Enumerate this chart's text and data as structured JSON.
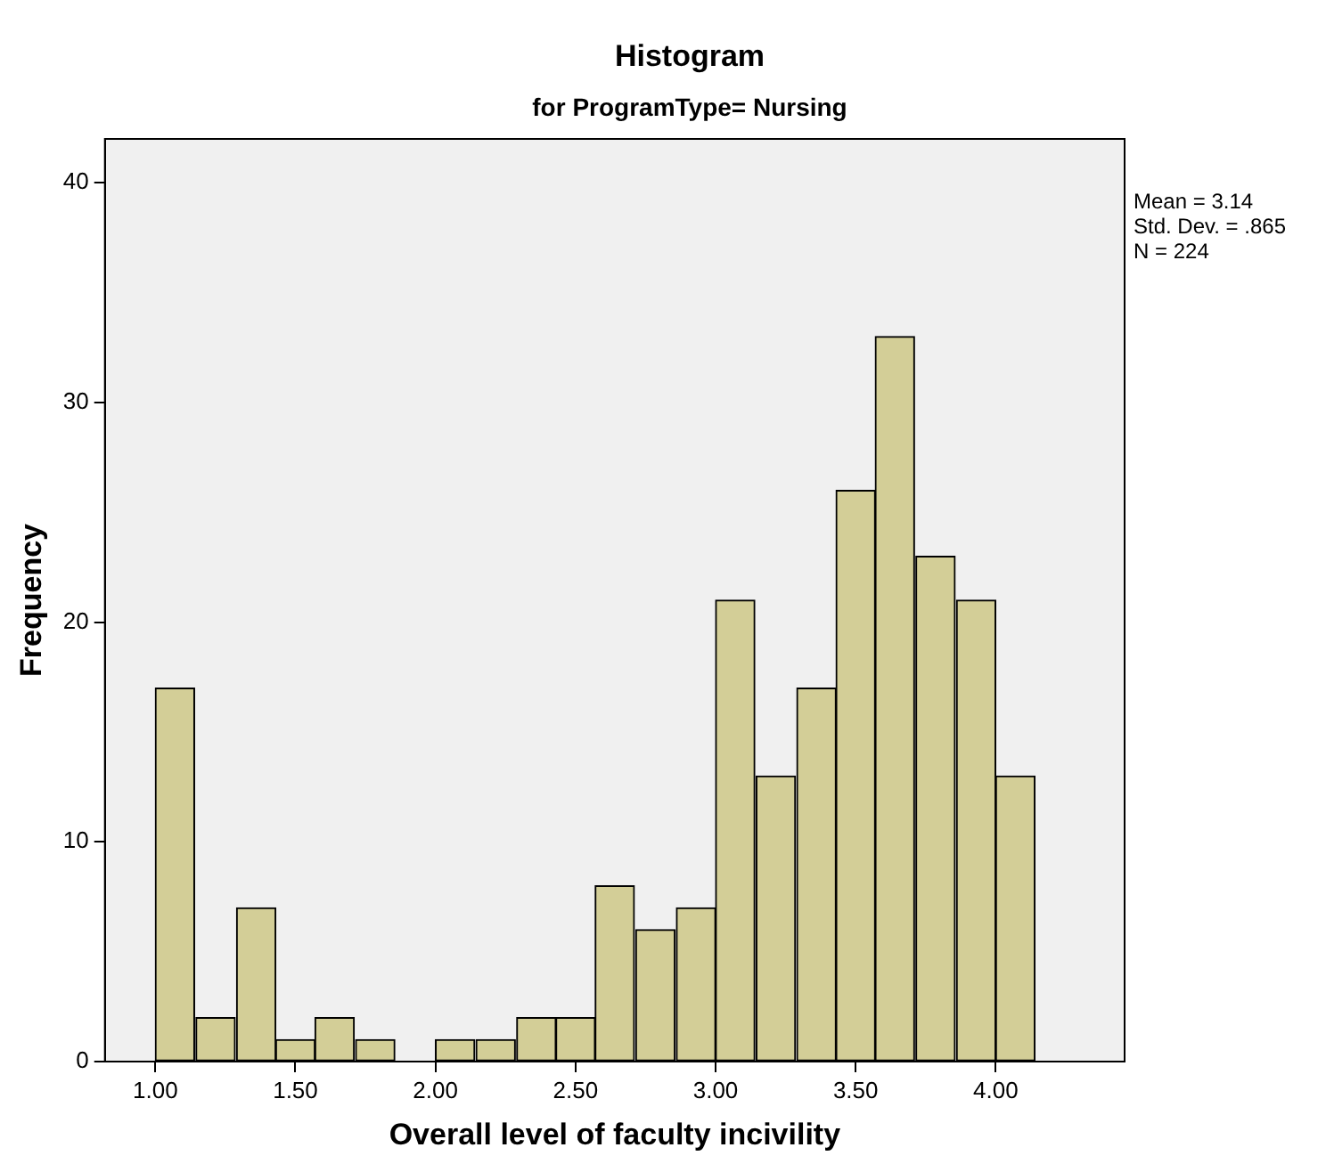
{
  "chart_data": {
    "type": "histogram",
    "title": "Histogram",
    "subtitle": "for ProgramType= Nursing",
    "xlabel": "Overall level of faculty incivility",
    "ylabel": "Frequency",
    "bins": [
      1,
      1.14,
      1.29,
      1.43,
      1.57,
      1.71,
      1.86,
      2,
      2.14,
      2.29,
      2.43,
      2.57,
      2.71,
      2.86,
      3,
      3.14,
      3.29,
      3.43,
      3.57,
      3.71,
      3.86,
      4,
      4.14
    ],
    "values": [
      17,
      2,
      7,
      1,
      2,
      1,
      0,
      1,
      1,
      2,
      2,
      8,
      6,
      7,
      21,
      13,
      17,
      26,
      33,
      23,
      21,
      13
    ],
    "color": "#d3ce97",
    "xlim": [
      0.82,
      4.46
    ],
    "xticks": [
      {
        "value": 1,
        "label": "1.00"
      },
      {
        "value": 1.5,
        "label": "1.50"
      },
      {
        "value": 2,
        "label": "2.00"
      },
      {
        "value": 2.5,
        "label": "2.50"
      },
      {
        "value": 3,
        "label": "3.00"
      },
      {
        "value": 3.5,
        "label": "3.50"
      },
      {
        "value": 4,
        "label": "4.00"
      }
    ],
    "ylim": [
      0,
      42
    ],
    "yticks": [
      0,
      10,
      20,
      30,
      40
    ],
    "grid": false,
    "legend": false,
    "annotations": [
      "Mean = 3.14",
      "Std. Dev. = .865",
      "N = 224"
    ]
  }
}
